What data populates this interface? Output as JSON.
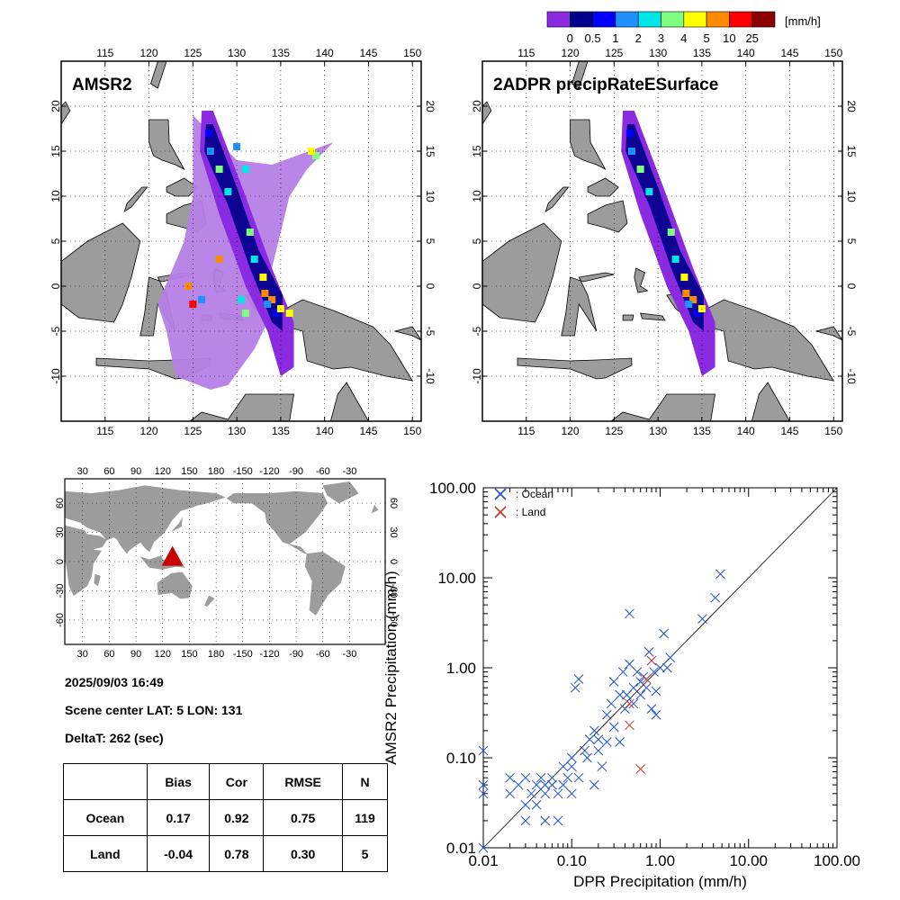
{
  "colorbar": {
    "unit": "[mm/h]",
    "ticks": [
      "0",
      "0.5",
      "1",
      "2",
      "3",
      "4",
      "5",
      "10",
      "25"
    ],
    "colors": [
      "#8a2be2",
      "#00008b",
      "#0000ff",
      "#1e90ff",
      "#00e5e5",
      "#7fff7f",
      "#ffff00",
      "#ff8c00",
      "#ff0000",
      "#8b0000"
    ]
  },
  "map_left": {
    "title": "AMSR2",
    "lon_ticks": [
      "115",
      "120",
      "125",
      "130",
      "135",
      "140",
      "145",
      "150"
    ],
    "lat_ticks": [
      "20",
      "15",
      "10",
      "5",
      "0",
      "-5",
      "-10"
    ]
  },
  "map_right": {
    "title": "2ADPR precipRateESurface",
    "lon_ticks": [
      "115",
      "120",
      "125",
      "130",
      "135",
      "140",
      "145",
      "150"
    ],
    "lat_ticks": [
      "20",
      "15",
      "10",
      "5",
      "0",
      "-5",
      "-10"
    ]
  },
  "world_map": {
    "lon_ticks": [
      "30",
      "60",
      "90",
      "120",
      "150",
      "180",
      "-150",
      "-120",
      "-90",
      "-60",
      "-30"
    ],
    "lat_ticks": [
      "60",
      "30",
      "0",
      "-30",
      "-60"
    ],
    "marker_color": "#cc0000"
  },
  "info": {
    "datetime": "2025/09/03 16:49",
    "scene_center": "Scene center LAT:  5   LON: 131",
    "delta_t": "DeltaT:  262 (sec)"
  },
  "stats_table": {
    "headers": [
      "",
      "Bias",
      "Cor",
      "RMSE",
      "N"
    ],
    "rows": [
      [
        "Ocean",
        "0.17",
        "0.92",
        "0.75",
        "119"
      ],
      [
        "Land",
        "-0.04",
        "0.78",
        "0.30",
        "5"
      ]
    ]
  },
  "chart_data": {
    "type": "scatter",
    "xlabel": "DPR Precipitation (mm/h)",
    "ylabel": "AMSR2 Precipitation (mm/h)",
    "x_scale": "log",
    "y_scale": "log",
    "xlim": [
      0.01,
      100
    ],
    "ylim": [
      0.01,
      100
    ],
    "x_tick_labels": [
      "0.01",
      "0.10",
      "1.00",
      "10.00",
      "100.00"
    ],
    "y_tick_labels": [
      "0.01",
      "0.10",
      "1.00",
      "10.00",
      "100.00"
    ],
    "reference_line": "1:1",
    "legend": [
      "x : Ocean",
      "x : Land"
    ],
    "legend_placement": "top-left",
    "series": [
      {
        "name": ": Ocean",
        "color": "#1f4fd6",
        "points": [
          [
            0.01,
            0.12
          ],
          [
            0.01,
            0.05
          ],
          [
            0.01,
            0.04
          ],
          [
            0.01,
            0.01
          ],
          [
            0.02,
            0.06
          ],
          [
            0.02,
            0.04
          ],
          [
            0.025,
            0.05
          ],
          [
            0.03,
            0.06
          ],
          [
            0.03,
            0.03
          ],
          [
            0.03,
            0.02
          ],
          [
            0.035,
            0.04
          ],
          [
            0.04,
            0.05
          ],
          [
            0.04,
            0.03
          ],
          [
            0.045,
            0.06
          ],
          [
            0.05,
            0.05
          ],
          [
            0.05,
            0.04
          ],
          [
            0.05,
            0.02
          ],
          [
            0.06,
            0.06
          ],
          [
            0.06,
            0.05
          ],
          [
            0.07,
            0.04
          ],
          [
            0.07,
            0.02
          ],
          [
            0.08,
            0.08
          ],
          [
            0.08,
            0.05
          ],
          [
            0.09,
            0.06
          ],
          [
            0.1,
            0.08
          ],
          [
            0.1,
            0.04
          ],
          [
            0.1,
            0.1
          ],
          [
            0.11,
            0.6
          ],
          [
            0.12,
            0.75
          ],
          [
            0.12,
            0.06
          ],
          [
            0.14,
            0.12
          ],
          [
            0.16,
            0.16
          ],
          [
            0.18,
            0.2
          ],
          [
            0.2,
            0.16
          ],
          [
            0.22,
            0.08
          ],
          [
            0.25,
            0.15
          ],
          [
            0.25,
            0.3
          ],
          [
            0.28,
            0.4
          ],
          [
            0.3,
            0.22
          ],
          [
            0.3,
            0.7
          ],
          [
            0.35,
            0.5
          ],
          [
            0.38,
            0.9
          ],
          [
            0.4,
            0.35
          ],
          [
            0.42,
            0.5
          ],
          [
            0.45,
            4
          ],
          [
            0.45,
            1.1
          ],
          [
            0.5,
            0.4
          ],
          [
            0.5,
            0.6
          ],
          [
            0.55,
            0.9
          ],
          [
            0.6,
            0.5
          ],
          [
            0.6,
            0.7
          ],
          [
            0.65,
            0.8
          ],
          [
            0.7,
            0.6
          ],
          [
            0.75,
            1.5
          ],
          [
            0.8,
            1.2
          ],
          [
            0.85,
            0.9
          ],
          [
            0.9,
            0.55
          ],
          [
            0.9,
            0.3
          ],
          [
            1.0,
            1.0
          ],
          [
            1.1,
            2.4
          ],
          [
            1.2,
            1.0
          ],
          [
            1.3,
            1.3
          ],
          [
            3.0,
            3.5
          ],
          [
            4.2,
            6
          ],
          [
            4.8,
            11
          ],
          [
            0.15,
            0.1
          ],
          [
            0.2,
            0.12
          ],
          [
            0.35,
            0.15
          ],
          [
            0.18,
            0.05
          ],
          [
            0.8,
            0.35
          ]
        ]
      },
      {
        "name": ": Land",
        "color": "#c0392b",
        "points": [
          [
            0.45,
            0.23
          ],
          [
            0.6,
            0.075
          ],
          [
            0.7,
            0.75
          ],
          [
            0.8,
            1.2
          ],
          [
            0.45,
            0.4
          ]
        ]
      }
    ]
  }
}
